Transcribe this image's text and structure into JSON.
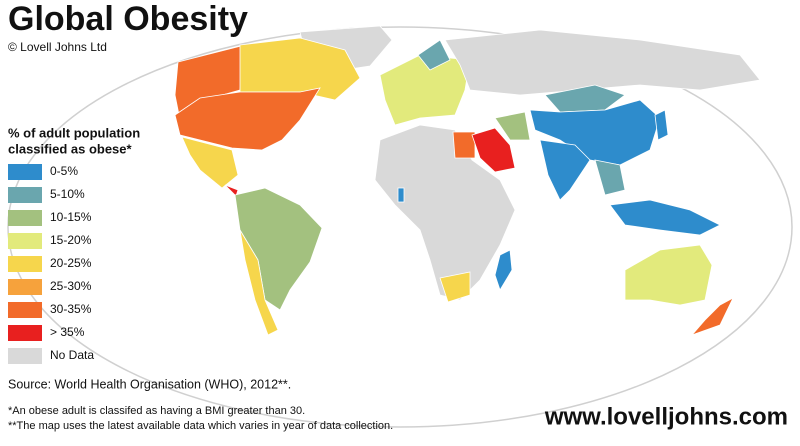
{
  "header": {
    "title": "Global Obesity",
    "copyright": "© Lovell Johns Ltd"
  },
  "legend": {
    "title": [
      "% of adult population",
      "classified as obese*"
    ],
    "items": [
      {
        "label": "0-5%",
        "color": "#2e8ccc"
      },
      {
        "label": "5-10%",
        "color": "#6aa6ae"
      },
      {
        "label": "10-15%",
        "color": "#a3c17f"
      },
      {
        "label": "15-20%",
        "color": "#e2ea7c"
      },
      {
        "label": "20-25%",
        "color": "#f6d64c"
      },
      {
        "label": "25-30%",
        "color": "#f6a23c"
      },
      {
        "label": "30-35%",
        "color": "#f26b2a"
      },
      {
        "label": "> 35%",
        "color": "#e8201f"
      },
      {
        "label": "No Data",
        "color": "#d9d9d9"
      }
    ]
  },
  "source": "Source: World Health Organisation (WHO), 2012**.",
  "footnotes": [
    "*An obese adult is classifed as having a BMI greater than 30.",
    "**The map uses the latest available data which varies in year of data collection."
  ],
  "website": "www.lovelljohns.com"
}
